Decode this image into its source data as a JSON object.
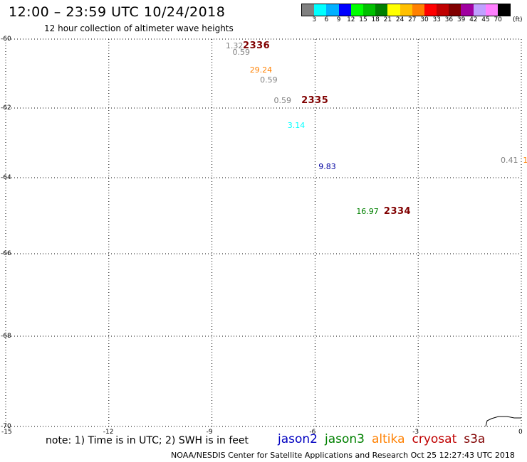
{
  "header": {
    "title": "12:00 – 23:59 UTC 10/24/2018",
    "subtitle": "12 hour collection of altimeter wave heights"
  },
  "colorbar": {
    "unit": "(ft)",
    "colors": [
      "#808080",
      "#00ffff",
      "#00b0ff",
      "#0000ff",
      "#00ff00",
      "#00c000",
      "#008000",
      "#ffff00",
      "#ffc000",
      "#ff8000",
      "#ff0000",
      "#c00000",
      "#800000",
      "#a000a0",
      "#c0a0ff",
      "#ff80ff",
      "#000000"
    ],
    "labels": [
      "3",
      "6",
      "9",
      "12",
      "15",
      "18",
      "21",
      "24",
      "27",
      "30",
      "33",
      "36",
      "39",
      "42",
      "45",
      "70"
    ]
  },
  "map": {
    "lat_labels": [
      {
        "text": "-60",
        "lat": -60
      },
      {
        "text": "-62",
        "lat": -62
      },
      {
        "text": "-64",
        "lat": -64
      },
      {
        "text": "-66",
        "lat": -66
      },
      {
        "text": "-68",
        "lat": -68
      },
      {
        "text": "-70",
        "lat": -70
      }
    ],
    "lon_labels": [
      {
        "text": "-15",
        "lon": -15
      },
      {
        "text": "-12",
        "lon": -12
      },
      {
        "text": "-9",
        "lon": -9
      },
      {
        "text": "-6",
        "lon": -6
      },
      {
        "text": "-3",
        "lon": -3
      },
      {
        "text": "0",
        "lon": 0
      }
    ],
    "observations": [
      {
        "value": "1.32",
        "color": "#808080",
        "lon": -8.6,
        "lat": -60.2
      },
      {
        "value": "0.59",
        "color": "#808080",
        "lon": -8.4,
        "lat": -60.4
      },
      {
        "value": "29.24",
        "color": "#ff8000",
        "lon": -7.9,
        "lat": -60.9
      },
      {
        "value": "0.59",
        "color": "#808080",
        "lon": -7.6,
        "lat": -61.2
      },
      {
        "value": "0.59",
        "color": "#808080",
        "lon": -7.2,
        "lat": -61.8
      },
      {
        "value": "3.14",
        "color": "#00ffff",
        "lon": -6.8,
        "lat": -62.5
      },
      {
        "value": "9.83",
        "color": "#0000a0",
        "lon": -5.9,
        "lat": -63.7
      },
      {
        "value": "16.97",
        "color": "#008000",
        "lon": -4.8,
        "lat": -64.9
      },
      {
        "value": "0.41",
        "color": "#808080",
        "lon": -0.6,
        "lat": -63.5
      },
      {
        "value": "1",
        "color": "#ff8000",
        "lon": 0.05,
        "lat": -63.5
      }
    ],
    "pass_labels": [
      {
        "text": "2336",
        "color": "#800000",
        "lon": -8.1,
        "lat": -60.2
      },
      {
        "text": "2335",
        "color": "#800000",
        "lon": -6.4,
        "lat": -61.8
      },
      {
        "text": "2334",
        "color": "#800000",
        "lon": -4.0,
        "lat": -64.9
      }
    ]
  },
  "footer": {
    "note": "note: 1) Time is in UTC; 2) SWH is in feet",
    "legend": [
      {
        "name": "jason2",
        "color": "#0000c0"
      },
      {
        "name": "jason3",
        "color": "#008000"
      },
      {
        "name": "altika",
        "color": "#ff8000"
      },
      {
        "name": "cryosat",
        "color": "#c00000"
      },
      {
        "name": "s3a",
        "color": "#800000"
      }
    ],
    "credit": "NOAA/NESDIS Center for Satellite Applications and Research     Oct 25 12:27:43 UTC 2018"
  }
}
